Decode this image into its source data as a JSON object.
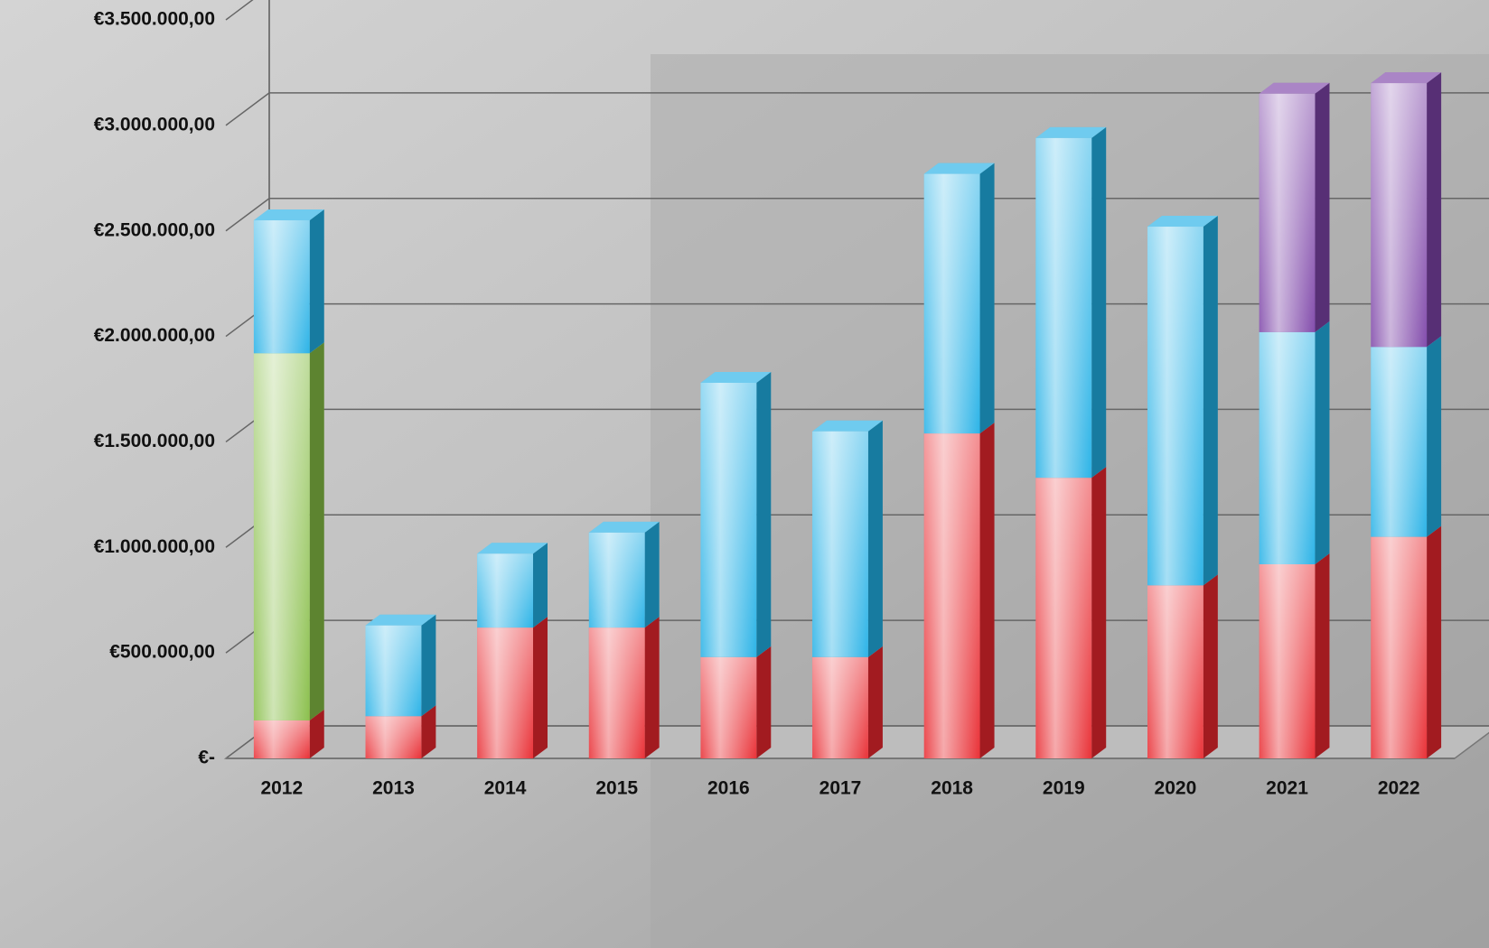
{
  "chart_data": {
    "type": "bar",
    "stacked": true,
    "categories": [
      "2012",
      "2013",
      "2014",
      "2015",
      "2016",
      "2017",
      "2018",
      "2019",
      "2020",
      "2021",
      "2022"
    ],
    "series": [
      {
        "color": "#e8282e",
        "values": [
          180000,
          200000,
          620000,
          620000,
          480000,
          480000,
          1540000,
          1330000,
          820000,
          920000,
          1050000
        ]
      },
      {
        "color": "#86bd45",
        "values": [
          1740000,
          null,
          null,
          null,
          null,
          null,
          null,
          null,
          null,
          null,
          null
        ]
      },
      {
        "color": "#22b0e6",
        "values": [
          630000,
          430000,
          350000,
          450000,
          1300000,
          1070000,
          1230000,
          1610000,
          1700000,
          1100000,
          900000
        ]
      },
      {
        "color": "#7d44a8",
        "values": [
          null,
          null,
          null,
          null,
          null,
          null,
          null,
          null,
          null,
          1130000,
          1250000
        ]
      }
    ],
    "ylim": [
      0,
      3500000
    ],
    "yticks": [
      {
        "value": 0,
        "label": "€-"
      },
      {
        "value": 500000,
        "label": "€500.000,00"
      },
      {
        "value": 1000000,
        "label": "€1.000.000,00"
      },
      {
        "value": 1500000,
        "label": "€1.500.000,00"
      },
      {
        "value": 2000000,
        "label": "€2.000.000,00"
      },
      {
        "value": 2500000,
        "label": "€2.500.000,00"
      },
      {
        "value": 3000000,
        "label": "€3.000.000,00"
      },
      {
        "value": 3500000,
        "label": "€3.500.000,00"
      }
    ],
    "grid": true
  }
}
